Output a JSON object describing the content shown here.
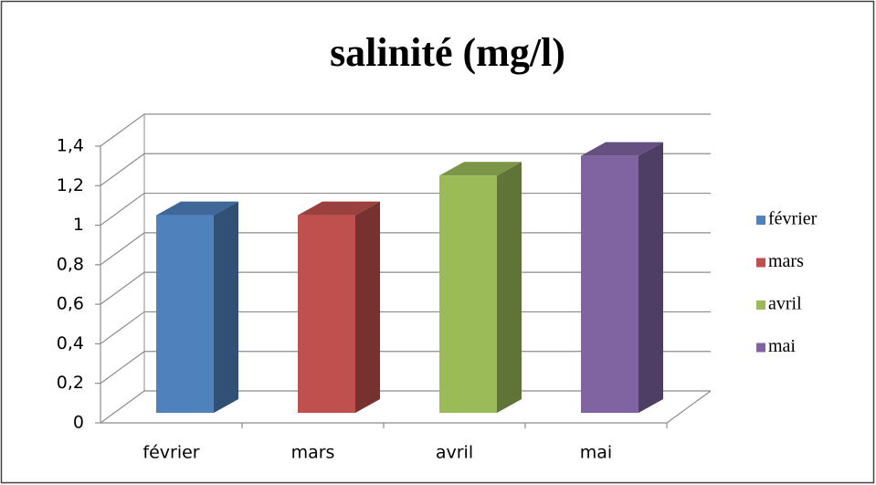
{
  "chart_data": {
    "type": "bar3d",
    "title": "salinité (mg/l)",
    "categories": [
      "février",
      "mars",
      "avril",
      "mai"
    ],
    "values": [
      1,
      1,
      1.2,
      1.3
    ],
    "colors": [
      "#4f81bd",
      "#c0504d",
      "#9bbb59",
      "#8064a2"
    ],
    "ylim": [
      0,
      1.4
    ],
    "yticks": [
      0,
      {
        "value": 0.2,
        "label": "0,2"
      },
      {
        "value": 0.4,
        "label": "0,4"
      },
      {
        "value": 0.6,
        "label": "0,6"
      },
      {
        "value": 0.8,
        "label": "0,8"
      },
      1,
      {
        "value": 1.2,
        "label": "1,2"
      },
      {
        "value": 1.4,
        "label": "1,4"
      }
    ],
    "grid": true,
    "legend": "right"
  }
}
